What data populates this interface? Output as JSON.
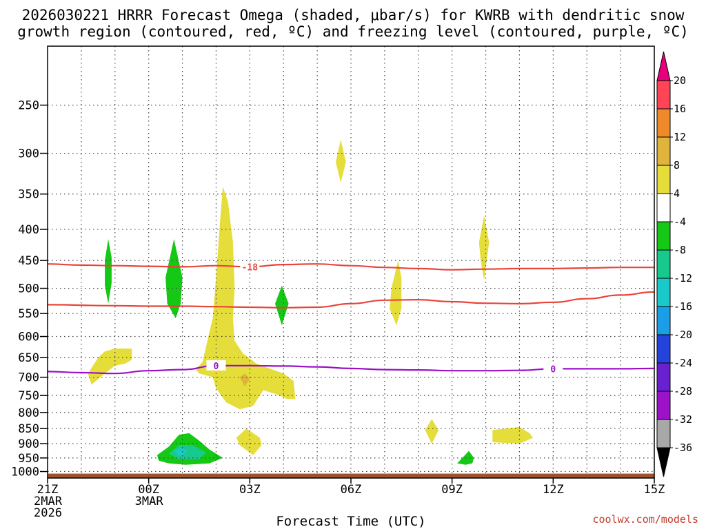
{
  "chart_data": {
    "type": "time-height cross section",
    "title_line1": "2026030221 HRRR Forecast Omega (shaded, μbar/s) for KWRB with dendritic snow",
    "title_line2": "growth region (contoured, red, ºC) and freezing level (contoured, purple, ºC)",
    "xlabel": "Forecast Time (UTC)",
    "credit": "coolwx.com/models",
    "x_range_hours": [
      0,
      18
    ],
    "y_range_mb": [
      200,
      1025
    ],
    "y_ticks": [
      250,
      300,
      350,
      400,
      450,
      500,
      550,
      600,
      650,
      700,
      750,
      800,
      850,
      900,
      950,
      1000
    ],
    "x_ticks": [
      {
        "hour": 0,
        "lines": [
          "21Z",
          "2MAR",
          "2026"
        ]
      },
      {
        "hour": 3,
        "lines": [
          "00Z",
          "3MAR"
        ]
      },
      {
        "hour": 6,
        "lines": [
          "03Z"
        ]
      },
      {
        "hour": 9,
        "lines": [
          "06Z"
        ]
      },
      {
        "hour": 12,
        "lines": [
          "09Z"
        ]
      },
      {
        "hour": 15,
        "lines": [
          "12Z"
        ]
      },
      {
        "hour": 18,
        "lines": [
          "15Z"
        ]
      }
    ],
    "colorbar": {
      "labels": [
        "20",
        "16",
        "12",
        "8",
        "4",
        "-4",
        "-8",
        "-12",
        "-16",
        "-20",
        "-24",
        "-28",
        "-32",
        "-36"
      ],
      "colors": [
        "#ff4455",
        "#ef8a2a",
        "#e0b43a",
        "#e5dd3a",
        "#ffffff",
        "#15c815",
        "#18c98e",
        "#1ac9c9",
        "#1a9ee8",
        "#2443dd",
        "#6a20d0",
        "#9c12c8",
        "#a8a8a8"
      ],
      "top_arrow": "#e6007e",
      "bottom_arrow": "#000000"
    },
    "contours": [
      {
        "name": "-18C (upper)",
        "color": "#e8443a",
        "label": "-18",
        "label_hour": 6.0,
        "points": [
          [
            0,
            456
          ],
          [
            1,
            458
          ],
          [
            2,
            459
          ],
          [
            3,
            460
          ],
          [
            4,
            461
          ],
          [
            5,
            459
          ],
          [
            6,
            461
          ],
          [
            7,
            457
          ],
          [
            8,
            456
          ],
          [
            9,
            459
          ],
          [
            10,
            462
          ],
          [
            11,
            464
          ],
          [
            12,
            466
          ],
          [
            13,
            465
          ],
          [
            14,
            464
          ],
          [
            15,
            464
          ],
          [
            16,
            463
          ],
          [
            17,
            462
          ],
          [
            18,
            462
          ]
        ]
      },
      {
        "name": "-18C (lower)",
        "color": "#e8443a",
        "label": "",
        "label_hour": null,
        "points": [
          [
            0,
            532
          ],
          [
            2,
            534
          ],
          [
            3,
            535
          ],
          [
            4,
            535
          ],
          [
            5,
            536
          ],
          [
            6,
            537
          ],
          [
            7,
            538
          ],
          [
            8,
            537
          ],
          [
            9,
            530
          ],
          [
            10,
            523
          ],
          [
            11,
            522
          ],
          [
            12,
            526
          ],
          [
            13,
            529
          ],
          [
            14,
            530
          ],
          [
            15,
            527
          ],
          [
            16,
            520
          ],
          [
            17,
            513
          ],
          [
            18,
            507
          ]
        ]
      },
      {
        "name": "0C freezing level",
        "color": "#9a10c8",
        "label": "0",
        "label_hour": 5.0,
        "label2_hour": 15.0,
        "points": [
          [
            0,
            685
          ],
          [
            1,
            688
          ],
          [
            2,
            690
          ],
          [
            3,
            683
          ],
          [
            4,
            680
          ],
          [
            5,
            670
          ],
          [
            6,
            670
          ],
          [
            7,
            671
          ],
          [
            8,
            673
          ],
          [
            9,
            677
          ],
          [
            10,
            680
          ],
          [
            11,
            681
          ],
          [
            12,
            683
          ],
          [
            13,
            683
          ],
          [
            14,
            682
          ],
          [
            15,
            678
          ],
          [
            16,
            678
          ],
          [
            17,
            678
          ],
          [
            18,
            677
          ]
        ]
      }
    ],
    "omega_regions": [
      {
        "value": 6,
        "color": "#e5dd3a",
        "points": [
          [
            4.8,
            590
          ],
          [
            4.9,
            560
          ],
          [
            5.0,
            480
          ],
          [
            5.1,
            400
          ],
          [
            5.2,
            340
          ],
          [
            5.35,
            360
          ],
          [
            5.5,
            420
          ],
          [
            5.55,
            500
          ],
          [
            5.5,
            560
          ],
          [
            5.55,
            610
          ],
          [
            5.8,
            640
          ],
          [
            6.2,
            665
          ],
          [
            7.0,
            690
          ],
          [
            7.3,
            710
          ],
          [
            7.35,
            760
          ],
          [
            7.1,
            760
          ],
          [
            6.9,
            750
          ],
          [
            6.4,
            735
          ],
          [
            6.1,
            780
          ],
          [
            5.7,
            790
          ],
          [
            5.3,
            770
          ],
          [
            5.0,
            730
          ],
          [
            4.9,
            700
          ],
          [
            4.5,
            690
          ],
          [
            4.4,
            680
          ],
          [
            4.6,
            660
          ]
        ]
      },
      {
        "value": 6,
        "color": "#e5dd3a",
        "points": [
          [
            1.3,
            720
          ],
          [
            1.2,
            690
          ],
          [
            1.5,
            650
          ],
          [
            1.7,
            635
          ],
          [
            2.0,
            628
          ],
          [
            2.5,
            628
          ],
          [
            2.5,
            655
          ],
          [
            2.3,
            665
          ],
          [
            2.0,
            670
          ],
          [
            1.7,
            690
          ]
        ]
      },
      {
        "value": 6,
        "color": "#e5dd3a",
        "points": [
          [
            8.55,
            310
          ],
          [
            8.7,
            285
          ],
          [
            8.85,
            310
          ],
          [
            8.7,
            335
          ]
        ]
      },
      {
        "value": 6,
        "color": "#e5dd3a",
        "points": [
          [
            10.2,
            500
          ],
          [
            10.4,
            450
          ],
          [
            10.5,
            480
          ],
          [
            10.5,
            540
          ],
          [
            10.35,
            575
          ],
          [
            10.15,
            540
          ]
        ]
      },
      {
        "value": 6,
        "color": "#e5dd3a",
        "points": [
          [
            12.8,
            420
          ],
          [
            12.95,
            380
          ],
          [
            13.1,
            420
          ],
          [
            12.95,
            485
          ],
          [
            12.85,
            450
          ]
        ]
      },
      {
        "value": 6,
        "color": "#e5dd3a",
        "points": [
          [
            11.2,
            855
          ],
          [
            11.4,
            820
          ],
          [
            11.6,
            855
          ],
          [
            11.4,
            900
          ]
        ]
      },
      {
        "value": 6,
        "color": "#e5dd3a",
        "points": [
          [
            5.6,
            880
          ],
          [
            5.9,
            850
          ],
          [
            6.3,
            880
          ],
          [
            6.35,
            905
          ],
          [
            6.1,
            940
          ],
          [
            5.7,
            905
          ]
        ]
      },
      {
        "value": 6,
        "color": "#e5dd3a",
        "points": [
          [
            13.2,
            855
          ],
          [
            14.0,
            845
          ],
          [
            14.3,
            865
          ],
          [
            14.4,
            880
          ],
          [
            14.0,
            900
          ],
          [
            13.2,
            895
          ]
        ]
      },
      {
        "value": 10,
        "color": "#e0b43a",
        "points": [
          [
            5.7,
            700
          ],
          [
            5.85,
            690
          ],
          [
            6.0,
            705
          ],
          [
            5.85,
            725
          ]
        ]
      },
      {
        "value": -6,
        "color": "#15c815",
        "points": [
          [
            1.7,
            450
          ],
          [
            1.8,
            415
          ],
          [
            1.9,
            445
          ],
          [
            1.9,
            490
          ],
          [
            1.8,
            530
          ],
          [
            1.7,
            495
          ]
        ]
      },
      {
        "value": -6,
        "color": "#15c815",
        "points": [
          [
            3.5,
            480
          ],
          [
            3.75,
            415
          ],
          [
            4.0,
            480
          ],
          [
            3.95,
            530
          ],
          [
            3.8,
            560
          ],
          [
            3.55,
            530
          ]
        ]
      },
      {
        "value": -6,
        "color": "#15c815",
        "points": [
          [
            6.75,
            530
          ],
          [
            6.95,
            495
          ],
          [
            7.15,
            530
          ],
          [
            6.95,
            575
          ]
        ]
      },
      {
        "value": -6,
        "color": "#15c815",
        "points": [
          [
            12.15,
            970
          ],
          [
            12.5,
            925
          ],
          [
            12.65,
            950
          ],
          [
            12.6,
            970
          ],
          [
            12.4,
            975
          ]
        ]
      },
      {
        "value": -6,
        "color": "#15c815",
        "points": [
          [
            3.25,
            940
          ],
          [
            3.6,
            910
          ],
          [
            3.9,
            870
          ],
          [
            4.2,
            865
          ],
          [
            4.5,
            890
          ],
          [
            4.8,
            920
          ],
          [
            5.2,
            950
          ],
          [
            4.8,
            970
          ],
          [
            4.1,
            975
          ],
          [
            3.6,
            970
          ],
          [
            3.3,
            960
          ]
        ]
      },
      {
        "value": -10,
        "color": "#18c98e",
        "points": [
          [
            3.6,
            935
          ],
          [
            3.9,
            905
          ],
          [
            4.3,
            905
          ],
          [
            4.7,
            930
          ],
          [
            4.5,
            955
          ],
          [
            3.9,
            955
          ]
        ]
      },
      {
        "value": -14,
        "color": "#1ac9c9",
        "points": [
          [
            3.75,
            925
          ],
          [
            3.95,
            915
          ],
          [
            4.15,
            925
          ],
          [
            3.95,
            945
          ]
        ]
      }
    ],
    "ground": {
      "color": "#a0522d",
      "top_mb": 1008
    }
  }
}
